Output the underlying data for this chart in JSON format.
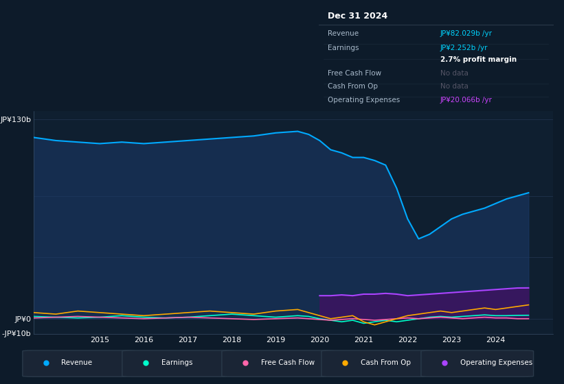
{
  "bg_color": "#0d1b2a",
  "plot_bg": "#0f1f30",
  "years": [
    2013.0,
    2013.5,
    2014.0,
    2014.5,
    2015.0,
    2015.5,
    2016.0,
    2016.5,
    2017.0,
    2017.5,
    2018.0,
    2018.5,
    2019.0,
    2019.5,
    2019.75,
    2020.0,
    2020.25,
    2020.5,
    2020.75,
    2021.0,
    2021.25,
    2021.5,
    2021.75,
    2022.0,
    2022.25,
    2022.5,
    2022.75,
    2023.0,
    2023.25,
    2023.5,
    2023.75,
    2024.0,
    2024.25,
    2024.5,
    2024.75
  ],
  "revenue": [
    122,
    118,
    116,
    115,
    114,
    115,
    114,
    115,
    116,
    117,
    118,
    119,
    121,
    122,
    120,
    116,
    110,
    108,
    105,
    105,
    103,
    100,
    85,
    65,
    52,
    55,
    60,
    65,
    68,
    70,
    72,
    75,
    78,
    80,
    82
  ],
  "earnings": [
    2,
    1.5,
    1,
    0.5,
    1,
    2,
    1,
    0.5,
    1,
    2,
    3,
    2,
    1,
    2,
    1.5,
    0,
    -1,
    -2,
    -1,
    -3,
    -2,
    -1,
    -2,
    -1,
    0,
    1,
    1.5,
    1,
    1.5,
    2,
    2.5,
    2,
    2,
    2.2,
    2.252
  ],
  "free_cash_flow": [
    1,
    0.5,
    1,
    1.5,
    1,
    0.5,
    0,
    0.5,
    1,
    0.5,
    0,
    -0.5,
    0,
    0.5,
    0,
    -0.5,
    -1,
    -0.5,
    0,
    -0.5,
    -1,
    -0.5,
    0,
    0.5,
    0,
    0.5,
    1,
    0.5,
    0,
    0.5,
    1,
    0.5,
    0.5,
    0,
    0
  ],
  "cash_from_op": [
    3,
    4,
    3,
    5,
    4,
    3,
    2,
    3,
    4,
    5,
    4,
    3,
    5,
    6,
    4,
    2,
    0,
    1,
    2,
    -2,
    -4,
    -2,
    0,
    2,
    3,
    4,
    5,
    4,
    5,
    6,
    7,
    6,
    7,
    8,
    9
  ],
  "op_expenses_x": [
    2020.0,
    2020.25,
    2020.5,
    2020.75,
    2021.0,
    2021.25,
    2021.5,
    2021.75,
    2022.0,
    2022.25,
    2022.5,
    2022.75,
    2023.0,
    2023.25,
    2023.5,
    2023.75,
    2024.0,
    2024.25,
    2024.5,
    2024.75
  ],
  "op_expenses_y": [
    15,
    15,
    15.5,
    15,
    16,
    16,
    16.5,
    16,
    15,
    15.5,
    16,
    16.5,
    17,
    17.5,
    18,
    18.5,
    19,
    19.5,
    20,
    20.066
  ],
  "ylim": [
    -10,
    135
  ],
  "xticks": [
    2015,
    2016,
    2017,
    2018,
    2019,
    2020,
    2021,
    2022,
    2023,
    2024
  ],
  "legend": [
    {
      "label": "Revenue",
      "color": "#00aaff"
    },
    {
      "label": "Earnings",
      "color": "#00ffcc"
    },
    {
      "label": "Free Cash Flow",
      "color": "#ff66aa"
    },
    {
      "label": "Cash From Op",
      "color": "#ffaa00"
    },
    {
      "label": "Operating Expenses",
      "color": "#aa44ff"
    }
  ],
  "revenue_color": "#00aaff",
  "revenue_fill": "#1a3a6a",
  "earnings_color": "#00ffcc",
  "fcf_color": "#ff66aa",
  "cfop_color": "#ffaa00",
  "opex_color": "#aa44ff",
  "opex_fill": "#3a1560",
  "grid_color": "#1e3048",
  "axis_color": "#3a5068",
  "info_bg": "#0a0e14",
  "info_border": "#2a3a4a"
}
